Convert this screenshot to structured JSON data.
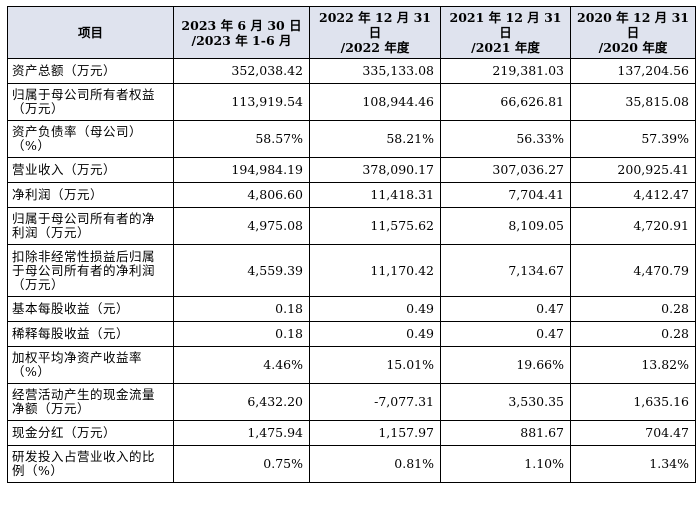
{
  "table": {
    "headers": [
      [
        "项目"
      ],
      [
        "2023 年 6 月 30 日",
        "/2023 年 1-6 月"
      ],
      [
        "2022 年 12 月 31 日",
        "/2022 年度"
      ],
      [
        "2021 年 12 月 31 日",
        "/2021 年度"
      ],
      [
        "2020 年 12 月 31 日",
        "/2020 年度"
      ]
    ],
    "rows": [
      {
        "label": "资产总额（万元）",
        "values": [
          "352,038.42",
          "335,133.08",
          "219,381.03",
          "137,204.56"
        ],
        "lines": 1
      },
      {
        "label": "归属于母公司所有者权益（万元）",
        "values": [
          "113,919.54",
          "108,944.46",
          "66,626.81",
          "35,815.08"
        ],
        "lines": 2
      },
      {
        "label": "资产负债率（母公司）（%）",
        "values": [
          "58.57%",
          "58.21%",
          "56.33%",
          "57.39%"
        ],
        "lines": 2
      },
      {
        "label": "营业收入（万元）",
        "values": [
          "194,984.19",
          "378,090.17",
          "307,036.27",
          "200,925.41"
        ],
        "lines": 1
      },
      {
        "label": "净利润（万元）",
        "values": [
          "4,806.60",
          "11,418.31",
          "7,704.41",
          "4,412.47"
        ],
        "lines": 1
      },
      {
        "label": "归属于母公司所有者的净利润（万元）",
        "values": [
          "4,975.08",
          "11,575.62",
          "8,109.05",
          "4,720.91"
        ],
        "lines": 2
      },
      {
        "label": "扣除非经常性损益后归属于母公司所有者的净利润（万元）",
        "values": [
          "4,559.39",
          "11,170.42",
          "7,134.67",
          "4,470.79"
        ],
        "lines": 3
      },
      {
        "label": "基本每股收益（元）",
        "values": [
          "0.18",
          "0.49",
          "0.47",
          "0.28"
        ],
        "lines": 1
      },
      {
        "label": "稀释每股收益（元）",
        "values": [
          "0.18",
          "0.49",
          "0.47",
          "0.28"
        ],
        "lines": 1
      },
      {
        "label": "加权平均净资产收益率（%）",
        "values": [
          "4.46%",
          "15.01%",
          "19.66%",
          "13.82%"
        ],
        "lines": 2
      },
      {
        "label": "经营活动产生的现金流量净额（万元）",
        "values": [
          "6,432.20",
          "-7,077.31",
          "3,530.35",
          "1,635.16"
        ],
        "lines": 2
      },
      {
        "label": "现金分红（万元）",
        "values": [
          "1,475.94",
          "1,157.97",
          "881.67",
          "704.47"
        ],
        "lines": 1
      },
      {
        "label": "研发投入占营业收入的比例（%）",
        "values": [
          "0.75%",
          "0.81%",
          "1.10%",
          "1.34%"
        ],
        "lines": 2
      }
    ]
  }
}
